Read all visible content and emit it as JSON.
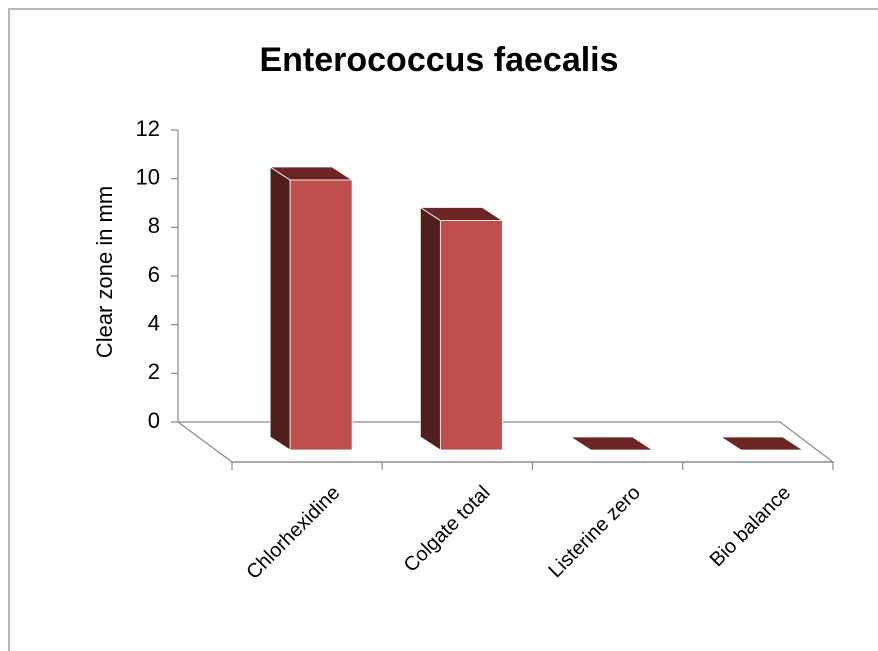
{
  "chart_data": {
    "type": "bar3d",
    "title": "Enterococcus faecalis",
    "ylabel": "Clear zone in mm",
    "categories": [
      "Chlorhexidine",
      "Colgate total",
      "Listerine zero",
      "Bio balance"
    ],
    "values": [
      10,
      8.5,
      0,
      0
    ],
    "color": "#c0504d",
    "ylim": [
      0,
      12
    ],
    "yticks": [
      0,
      2,
      4,
      6,
      8,
      10,
      12
    ]
  }
}
